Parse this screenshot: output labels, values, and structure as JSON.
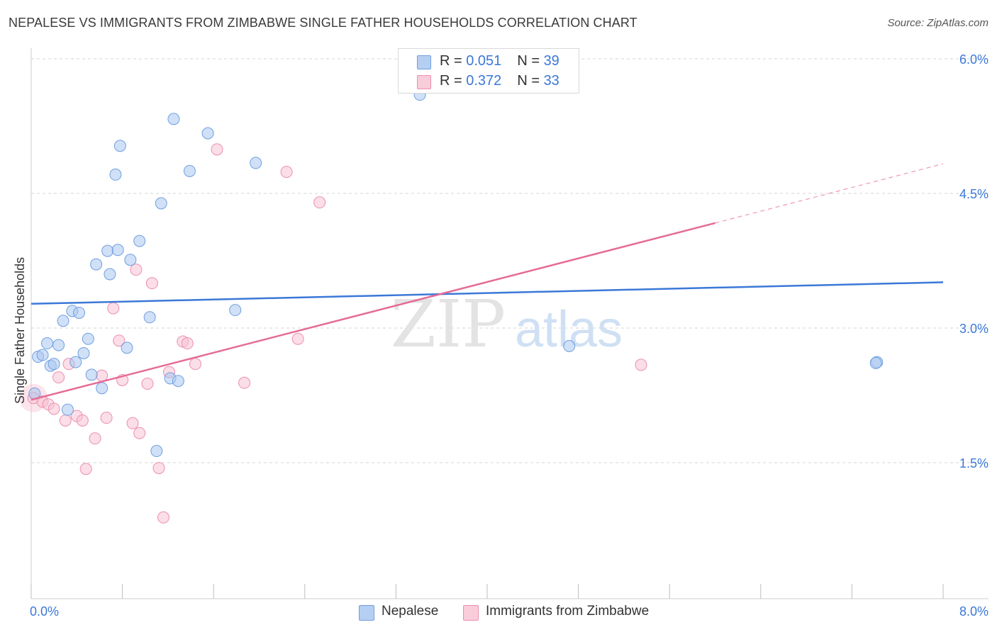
{
  "title": "NEPALESE VS IMMIGRANTS FROM ZIMBABWE SINGLE FATHER HOUSEHOLDS CORRELATION CHART",
  "source": "Source: ZipAtlas.com",
  "watermark": {
    "zip": "ZIP",
    "atlas": "atlas"
  },
  "legend_top": {
    "rows": [
      {
        "r_key": "R = ",
        "r_value": "0.051",
        "n_key": "N = ",
        "n_value": "39"
      },
      {
        "r_key": "R = ",
        "r_value": "0.372",
        "n_key": "N = ",
        "n_value": "33"
      }
    ]
  },
  "legend_bottom": {
    "items": [
      {
        "label": "Nepalese"
      },
      {
        "label": "Immigrants from Zimbabwe"
      }
    ]
  },
  "chart_data": {
    "type": "scatter",
    "title": "NEPALESE VS IMMIGRANTS FROM ZIMBABWE SINGLE FATHER HOUSEHOLDS CORRELATION CHART",
    "xlabel": "",
    "ylabel": "Single Father Households",
    "xlim": [
      0,
      8
    ],
    "ylim": [
      0,
      6.3
    ],
    "x_tick_labels": [
      "0.0%",
      "8.0%"
    ],
    "y_ticks": [
      1.5,
      3.0,
      4.5,
      6.0
    ],
    "y_tick_labels": [
      "1.5%",
      "3.0%",
      "4.5%",
      "6.0%"
    ],
    "colors": {
      "nepalese": "#a9c7f0",
      "nepalese_stroke": "#6f9fe0",
      "nepalese_line": "#3b78d8",
      "zimbabwe": "#f8c3d3",
      "zimbabwe_stroke": "#ec8fae",
      "zimbabwe_line": "#e56b97"
    },
    "series": [
      {
        "name": "Nepalese",
        "r": 0.051,
        "n": 39,
        "trend": {
          "x0": 0.0,
          "y0": 3.27,
          "x1": 8.0,
          "y1": 3.51
        },
        "points": [
          [
            0.03,
            2.27
          ],
          [
            0.06,
            2.68
          ],
          [
            0.1,
            2.7
          ],
          [
            0.14,
            2.83
          ],
          [
            0.17,
            2.58
          ],
          [
            0.2,
            2.6
          ],
          [
            0.24,
            2.81
          ],
          [
            0.28,
            3.08
          ],
          [
            0.32,
            2.09
          ],
          [
            0.36,
            3.19
          ],
          [
            0.39,
            2.62
          ],
          [
            0.42,
            3.17
          ],
          [
            0.46,
            2.72
          ],
          [
            0.5,
            2.88
          ],
          [
            0.53,
            2.48
          ],
          [
            0.57,
            3.71
          ],
          [
            0.62,
            2.33
          ],
          [
            0.67,
            3.86
          ],
          [
            0.69,
            3.6
          ],
          [
            0.74,
            4.71
          ],
          [
            0.76,
            3.87
          ],
          [
            0.78,
            5.03
          ],
          [
            0.84,
            2.78
          ],
          [
            0.87,
            3.76
          ],
          [
            0.95,
            3.97
          ],
          [
            1.04,
            3.12
          ],
          [
            1.1,
            1.63
          ],
          [
            1.14,
            4.39
          ],
          [
            1.22,
            2.44
          ],
          [
            1.29,
            2.41
          ],
          [
            1.39,
            4.75
          ],
          [
            1.25,
            5.33
          ],
          [
            1.55,
            5.17
          ],
          [
            1.79,
            3.2
          ],
          [
            1.97,
            4.84
          ],
          [
            3.41,
            5.6
          ],
          [
            4.72,
            2.8
          ],
          [
            7.42,
            2.62
          ],
          [
            7.41,
            2.61
          ]
        ]
      },
      {
        "name": "Immigrants from Zimbabwe",
        "r": 0.372,
        "n": 33,
        "trend": {
          "x0": 0.0,
          "y0": 2.2,
          "x1": 6.0,
          "y1": 4.17,
          "dash_x1": 8.0,
          "dash_y1": 4.83
        },
        "points": [
          [
            0.02,
            2.22
          ],
          [
            0.1,
            2.18
          ],
          [
            0.15,
            2.15
          ],
          [
            0.2,
            2.1
          ],
          [
            0.24,
            2.45
          ],
          [
            0.3,
            1.97
          ],
          [
            0.33,
            2.6
          ],
          [
            0.4,
            2.02
          ],
          [
            0.45,
            1.97
          ],
          [
            0.48,
            1.43
          ],
          [
            0.56,
            1.77
          ],
          [
            0.62,
            2.47
          ],
          [
            0.66,
            2.0
          ],
          [
            0.72,
            3.22
          ],
          [
            0.77,
            2.86
          ],
          [
            0.8,
            2.42
          ],
          [
            0.89,
            1.94
          ],
          [
            0.92,
            3.65
          ],
          [
            0.95,
            1.83
          ],
          [
            1.02,
            2.38
          ],
          [
            1.06,
            3.5
          ],
          [
            1.12,
            1.44
          ],
          [
            1.16,
            0.89
          ],
          [
            1.21,
            2.51
          ],
          [
            1.33,
            2.85
          ],
          [
            1.37,
            2.83
          ],
          [
            1.44,
            2.6
          ],
          [
            1.63,
            4.99
          ],
          [
            1.87,
            2.39
          ],
          [
            2.24,
            4.74
          ],
          [
            2.34,
            2.88
          ],
          [
            2.53,
            4.4
          ],
          [
            5.35,
            2.59
          ]
        ]
      }
    ]
  }
}
